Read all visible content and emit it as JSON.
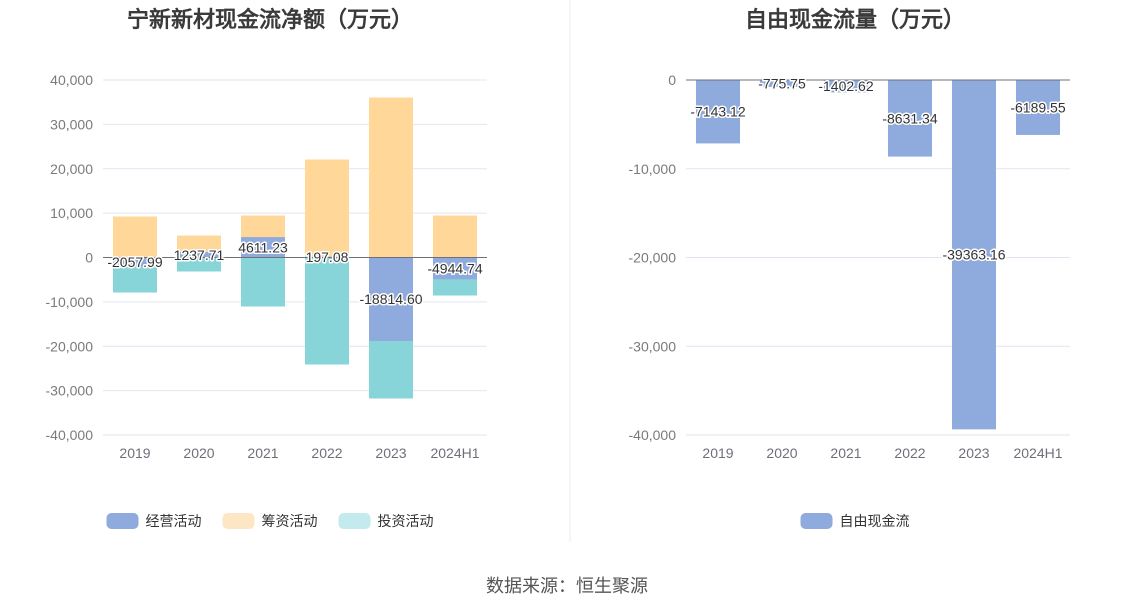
{
  "chart_data": [
    {
      "type": "bar",
      "stacked": true,
      "title": "宁新新材现金流净额（万元）",
      "categories": [
        "2019",
        "2020",
        "2021",
        "2022",
        "2023",
        "2024H1"
      ],
      "series": [
        {
          "name": "经营活动",
          "values": [
            -2057.99,
            1237.71,
            4611.23,
            197.08,
            -18814.6,
            -4944.74
          ],
          "labels": [
            "-2057.99",
            "1237.71",
            "4611.23",
            "197.08",
            "-18814.60",
            "-4944.74"
          ],
          "color": "#8FAADC",
          "legend_color": "#8FAADC"
        },
        {
          "name": "筹资活动",
          "values": [
            9240,
            3720,
            4850,
            21890,
            36060,
            9460
          ],
          "color": "#FFD899",
          "legend_color": "#FDE6C4"
        },
        {
          "name": "投资活动",
          "values": [
            -5830,
            -3150,
            -11040,
            -24110,
            -12960,
            -3620
          ],
          "color": "#87D4D9",
          "legend_color": "#C3EAEC"
        }
      ],
      "ylim": [
        -40000,
        40000
      ],
      "yticks": [
        40000,
        30000,
        20000,
        10000,
        0,
        -10000,
        -20000,
        -30000,
        -40000
      ],
      "ytick_labels": [
        "40,000",
        "30,000",
        "20,000",
        "10,000",
        "0",
        "-10,000",
        "-20,000",
        "-30,000",
        "-40,000"
      ],
      "grid": true,
      "legend_position": "bottom"
    },
    {
      "type": "bar",
      "stacked": false,
      "title": "自由现金流量（万元）",
      "categories": [
        "2019",
        "2020",
        "2021",
        "2022",
        "2023",
        "2024H1"
      ],
      "series": [
        {
          "name": "自由现金流",
          "values": [
            -7143.12,
            -775.75,
            -1402.62,
            -8631.34,
            -39363.16,
            -6189.55
          ],
          "labels": [
            "-7143.12",
            "-775.75",
            "-1402.62",
            "-8631.34",
            "-39363.16",
            "-6189.55"
          ],
          "color": "#8FAADC",
          "legend_color": "#8FAADC"
        }
      ],
      "ylim": [
        -40000,
        0
      ],
      "yticks": [
        0,
        -10000,
        -20000,
        -30000,
        -40000
      ],
      "ytick_labels": [
        "0",
        "-10,000",
        "-20,000",
        "-30,000",
        "-40,000"
      ],
      "grid": true,
      "legend_position": "bottom"
    }
  ],
  "footer": "数据来源：恒生聚源"
}
